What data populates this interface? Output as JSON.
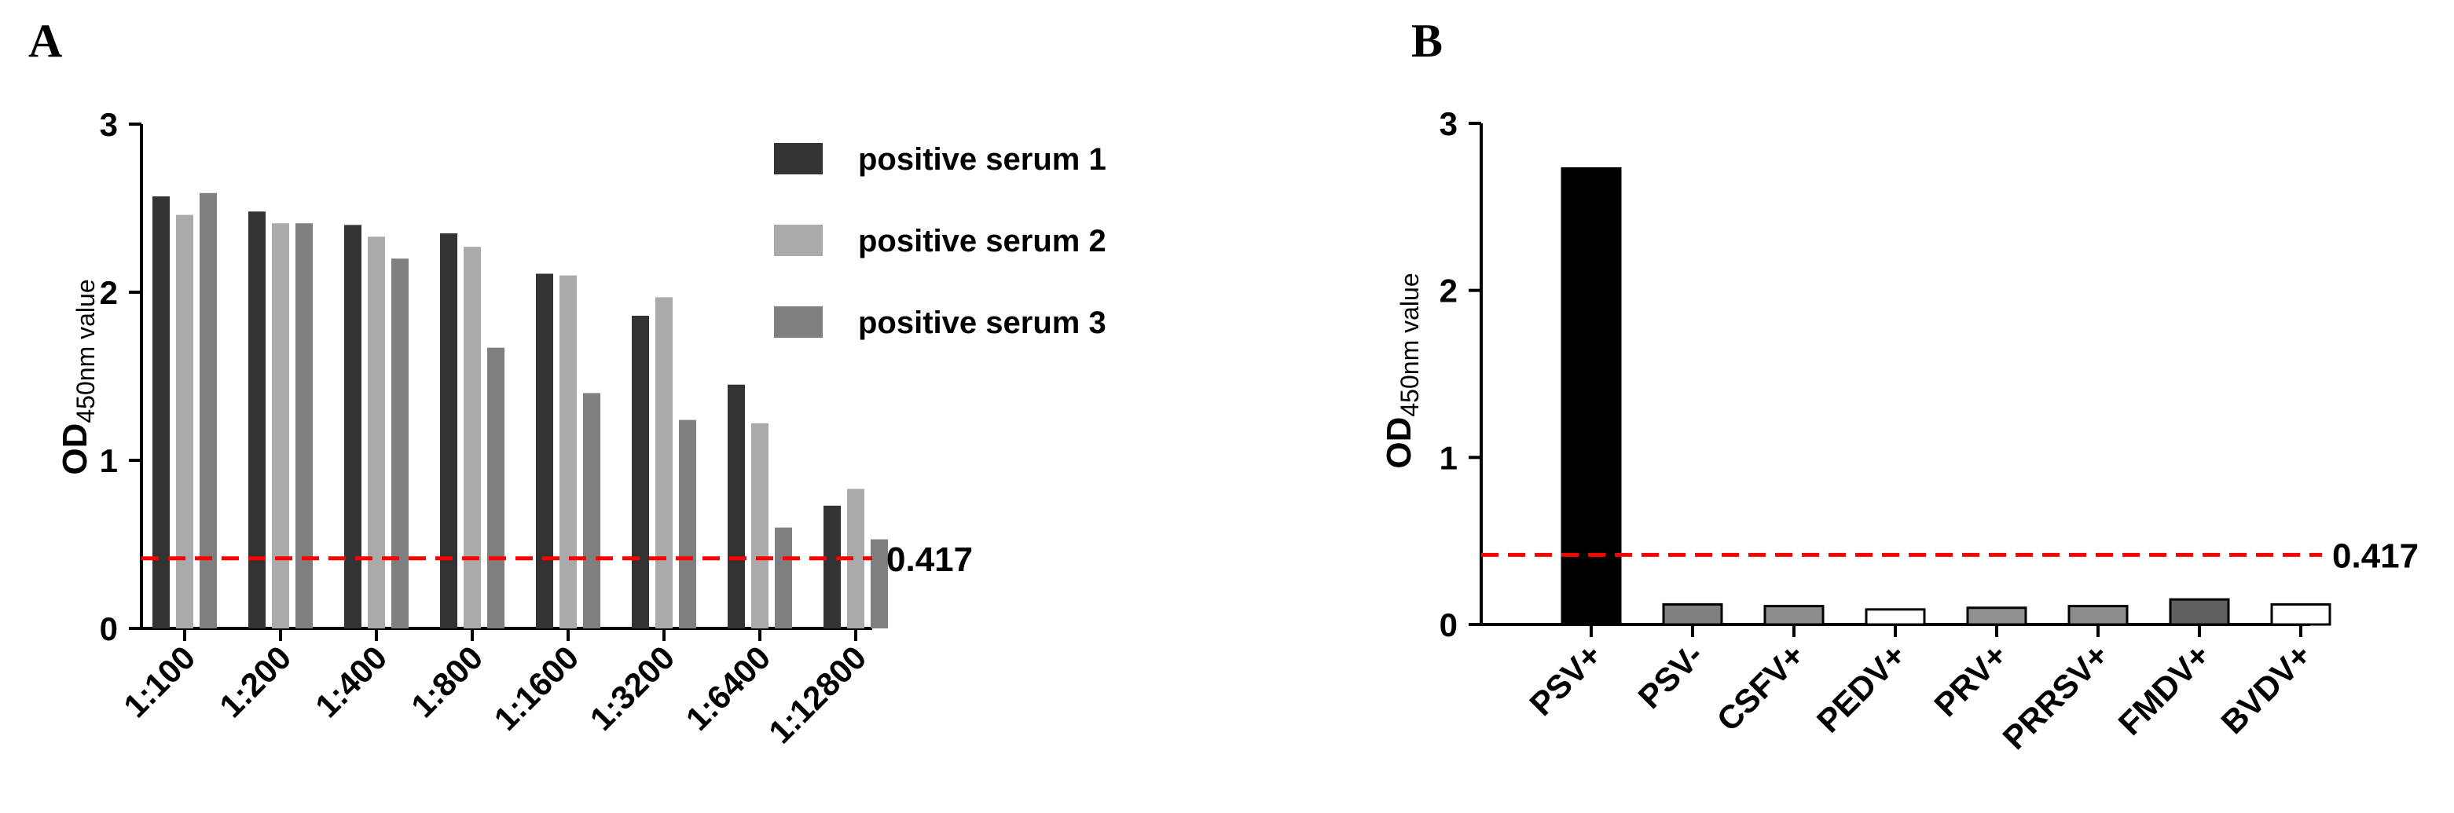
{
  "colors": {
    "serum1": "#333333",
    "serum2": "#aaaaaa",
    "serum3": "#7f7f7f",
    "reference_line": "#ff0000",
    "panelB_bars": [
      "#000000",
      "#808080",
      "#8c8c8c",
      "#ffffff",
      "#909090",
      "#8c8c8c",
      "#606060",
      "#ffffff"
    ]
  },
  "chart_data": [
    {
      "panel": "A",
      "type": "bar",
      "ylabel": "OD",
      "ylabel_sub": "450nm value",
      "ylim": [
        0,
        3
      ],
      "yticks": [
        "0",
        "1",
        "2",
        "3"
      ],
      "categories": [
        "1:100",
        "1:200",
        "1:400",
        "1:800",
        "1:1600",
        "1:3200",
        "1:6400",
        "1:12800"
      ],
      "series": [
        {
          "name": "positive serum 1",
          "values": [
            2.57,
            2.48,
            2.4,
            2.35,
            2.11,
            1.86,
            1.45,
            0.73
          ]
        },
        {
          "name": "positive serum 2",
          "values": [
            2.46,
            2.41,
            2.33,
            2.27,
            2.1,
            1.97,
            1.22,
            0.83
          ]
        },
        {
          "name": "positive serum 3",
          "values": [
            2.59,
            2.41,
            2.2,
            1.67,
            1.4,
            1.24,
            0.6,
            0.53
          ]
        }
      ],
      "reference_line": {
        "value": 0.417,
        "label": "0.417"
      },
      "legend_position": "top-right"
    },
    {
      "panel": "B",
      "type": "bar",
      "ylabel": "OD",
      "ylabel_sub": "450nm value",
      "ylim": [
        0,
        3
      ],
      "yticks": [
        "0",
        "1",
        "2",
        "3"
      ],
      "categories": [
        "PSV+",
        "PSV-",
        "CSFV+",
        "PEDV+",
        "PRV+",
        "PRRSV+",
        "FMDV+",
        "BVDV+"
      ],
      "values": [
        2.73,
        0.12,
        0.11,
        0.09,
        0.1,
        0.11,
        0.15,
        0.12
      ],
      "reference_line": {
        "value": 0.417,
        "label": "0.417"
      }
    }
  ]
}
